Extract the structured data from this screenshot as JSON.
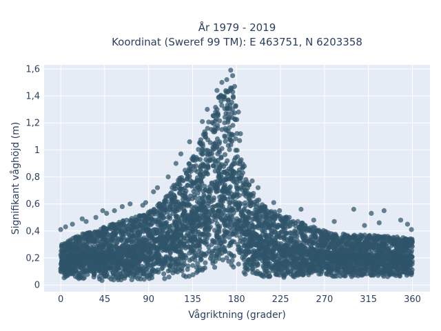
{
  "chart_data": {
    "type": "scatter",
    "title_lines": [
      "År 1979 - 2019",
      "Koordinat (Sweref 99 TM): E 463751, N 6203358"
    ],
    "xlabel": "Vågriktning (grader)",
    "ylabel": "Signifikant våghöjd (m)",
    "xlim": [
      -17,
      378
    ],
    "ylim": [
      -0.05,
      1.63
    ],
    "xticks": [
      0,
      45,
      90,
      135,
      180,
      225,
      270,
      315,
      360
    ],
    "xtick_labels": [
      "0",
      "45",
      "90",
      "135",
      "180",
      "225",
      "270",
      "315",
      "360"
    ],
    "yticks": [
      0,
      0.2,
      0.4,
      0.6,
      0.8,
      1.0,
      1.2,
      1.4,
      1.6
    ],
    "ytick_labels": [
      "0",
      "0,2",
      "0,4",
      "0,6",
      "0,8",
      "1",
      "1,2",
      "1,4",
      "1,6"
    ],
    "grid": true,
    "colors": {
      "marker": "#2f5569",
      "plot_background": "#e5ecf6",
      "grid": "#ffffff",
      "text": "#2a3f5f"
    },
    "envelope": {
      "x": [
        0,
        10,
        20,
        30,
        45,
        60,
        75,
        90,
        100,
        110,
        120,
        130,
        140,
        150,
        155,
        160,
        165,
        170,
        175,
        180,
        185,
        190,
        200,
        210,
        225,
        240,
        255,
        270,
        285,
        300,
        315,
        330,
        345,
        360
      ],
      "upper": [
        0.3,
        0.34,
        0.38,
        0.39,
        0.43,
        0.47,
        0.5,
        0.54,
        0.6,
        0.68,
        0.78,
        0.88,
        1.02,
        1.2,
        1.3,
        1.38,
        1.43,
        1.46,
        1.48,
        1.3,
        0.98,
        0.78,
        0.65,
        0.58,
        0.52,
        0.48,
        0.44,
        0.4,
        0.38,
        0.37,
        0.37,
        0.36,
        0.36,
        0.34
      ],
      "lower": [
        0.05,
        0.05,
        0.04,
        0.04,
        0.03,
        0.03,
        0.03,
        0.03,
        0.04,
        0.05,
        0.06,
        0.06,
        0.08,
        0.1,
        0.12,
        0.13,
        0.13,
        0.12,
        0.11,
        0.1,
        0.08,
        0.07,
        0.06,
        0.05,
        0.05,
        0.05,
        0.06,
        0.06,
        0.06,
        0.06,
        0.06,
        0.06,
        0.06,
        0.06
      ]
    },
    "outliers": [
      {
        "x": 0,
        "y": 0.41
      },
      {
        "x": 5,
        "y": 0.43
      },
      {
        "x": 12,
        "y": 0.45
      },
      {
        "x": 22,
        "y": 0.49
      },
      {
        "x": 26,
        "y": 0.47
      },
      {
        "x": 36,
        "y": 0.5
      },
      {
        "x": 43,
        "y": 0.55
      },
      {
        "x": 47,
        "y": 0.53
      },
      {
        "x": 55,
        "y": 0.55
      },
      {
        "x": 63,
        "y": 0.58
      },
      {
        "x": 71,
        "y": 0.6
      },
      {
        "x": 84,
        "y": 0.59
      },
      {
        "x": 87,
        "y": 0.61
      },
      {
        "x": 95,
        "y": 0.69
      },
      {
        "x": 99,
        "y": 0.72
      },
      {
        "x": 110,
        "y": 0.8
      },
      {
        "x": 118,
        "y": 0.9
      },
      {
        "x": 123,
        "y": 0.97
      },
      {
        "x": 132,
        "y": 1.06
      },
      {
        "x": 145,
        "y": 1.21
      },
      {
        "x": 150,
        "y": 1.3
      },
      {
        "x": 160,
        "y": 1.44
      },
      {
        "x": 165,
        "y": 1.5
      },
      {
        "x": 170,
        "y": 1.52
      },
      {
        "x": 174,
        "y": 1.59
      },
      {
        "x": 176,
        "y": 1.55
      },
      {
        "x": 178,
        "y": 1.47
      },
      {
        "x": 182,
        "y": 1.28
      },
      {
        "x": 184,
        "y": 1.12
      },
      {
        "x": 188,
        "y": 0.88
      },
      {
        "x": 196,
        "y": 0.77
      },
      {
        "x": 202,
        "y": 0.72
      },
      {
        "x": 218,
        "y": 0.61
      },
      {
        "x": 224,
        "y": 0.55
      },
      {
        "x": 234,
        "y": 0.5
      },
      {
        "x": 246,
        "y": 0.56
      },
      {
        "x": 259,
        "y": 0.48
      },
      {
        "x": 280,
        "y": 0.47
      },
      {
        "x": 300,
        "y": 0.56
      },
      {
        "x": 311,
        "y": 0.44
      },
      {
        "x": 318,
        "y": 0.53
      },
      {
        "x": 326,
        "y": 0.46
      },
      {
        "x": 331,
        "y": 0.55
      },
      {
        "x": 348,
        "y": 0.48
      },
      {
        "x": 355,
        "y": 0.45
      },
      {
        "x": 359,
        "y": 0.41
      }
    ],
    "n_points": 3400
  }
}
